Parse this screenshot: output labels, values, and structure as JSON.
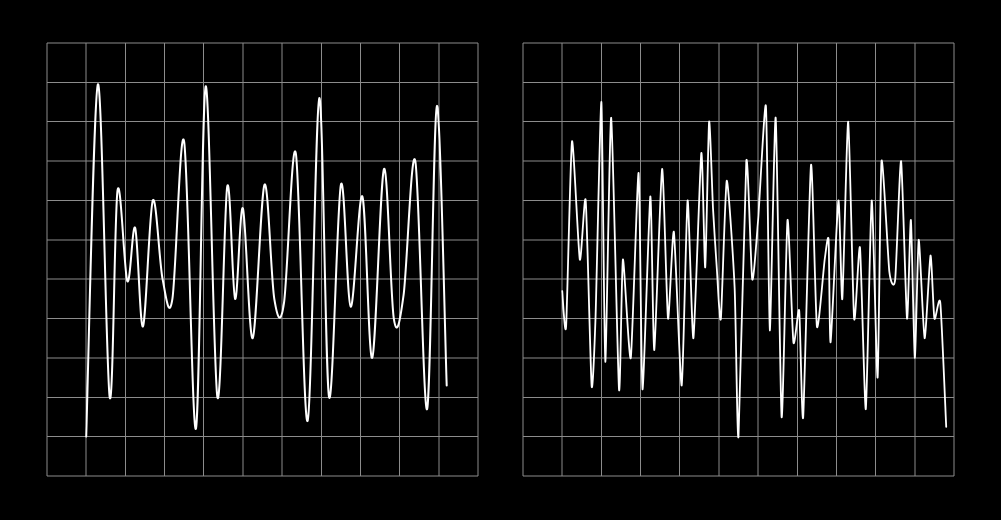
{
  "colors": {
    "background": "#000000",
    "grid": "#8c8c8c",
    "trace": "#ffffff"
  },
  "chart_data": [
    {
      "type": "line",
      "title": "",
      "xlabel": "",
      "ylabel": "",
      "xlim": [
        0,
        11
      ],
      "ylim": [
        0,
        11
      ],
      "grid": true,
      "grid_divisions": {
        "x": 11,
        "y": 11
      },
      "series": [
        {
          "points": [
            [
              1.0,
              1.0
            ],
            [
              1.3,
              9.95
            ],
            [
              1.6,
              2.0
            ],
            [
              1.8,
              7.25
            ],
            [
              2.05,
              4.95
            ],
            [
              2.25,
              6.3
            ],
            [
              2.45,
              3.8
            ],
            [
              2.7,
              7.0
            ],
            [
              2.95,
              5.0
            ],
            [
              3.2,
              4.5
            ],
            [
              3.5,
              8.5
            ],
            [
              3.8,
              1.2
            ],
            [
              4.05,
              9.9
            ],
            [
              4.35,
              2.0
            ],
            [
              4.6,
              7.35
            ],
            [
              4.8,
              4.5
            ],
            [
              5.0,
              6.8
            ],
            [
              5.25,
              3.5
            ],
            [
              5.55,
              7.4
            ],
            [
              5.8,
              4.5
            ],
            [
              6.05,
              4.4
            ],
            [
              6.35,
              8.2
            ],
            [
              6.65,
              1.4
            ],
            [
              6.95,
              9.6
            ],
            [
              7.2,
              2.0
            ],
            [
              7.5,
              7.4
            ],
            [
              7.75,
              4.3
            ],
            [
              8.05,
              7.1
            ],
            [
              8.3,
              3.0
            ],
            [
              8.6,
              7.8
            ],
            [
              8.85,
              4.0
            ],
            [
              9.1,
              4.6
            ],
            [
              9.4,
              8.0
            ],
            [
              9.7,
              1.7
            ],
            [
              9.95,
              9.4
            ],
            [
              10.2,
              2.3
            ]
          ]
        }
      ]
    },
    {
      "type": "line",
      "title": "",
      "xlabel": "",
      "ylabel": "",
      "xlim": [
        0,
        11
      ],
      "ylim": [
        0,
        11
      ],
      "grid": true,
      "grid_divisions": {
        "x": 11,
        "y": 11
      },
      "series": [
        {
          "points": [
            [
              1.0,
              4.7
            ],
            [
              1.1,
              3.8
            ],
            [
              1.25,
              8.5
            ],
            [
              1.45,
              5.5
            ],
            [
              1.6,
              7.0
            ],
            [
              1.75,
              2.3
            ],
            [
              1.85,
              4.0
            ],
            [
              2.0,
              9.5
            ],
            [
              2.1,
              2.9
            ],
            [
              2.25,
              9.1
            ],
            [
              2.45,
              2.2
            ],
            [
              2.55,
              5.5
            ],
            [
              2.75,
              3.0
            ],
            [
              2.95,
              7.7
            ],
            [
              3.05,
              2.2
            ],
            [
              3.25,
              7.1
            ],
            [
              3.35,
              3.2
            ],
            [
              3.55,
              7.8
            ],
            [
              3.7,
              4.0
            ],
            [
              3.85,
              6.2
            ],
            [
              4.05,
              2.3
            ],
            [
              4.2,
              7.0
            ],
            [
              4.35,
              3.5
            ],
            [
              4.55,
              8.2
            ],
            [
              4.65,
              5.3
            ],
            [
              4.75,
              9.0
            ],
            [
              4.85,
              6.8
            ],
            [
              4.95,
              5.2
            ],
            [
              5.05,
              4.0
            ],
            [
              5.2,
              7.5
            ],
            [
              5.4,
              4.8
            ],
            [
              5.5,
              1.0
            ],
            [
              5.7,
              8.0
            ],
            [
              5.85,
              5.0
            ],
            [
              6.0,
              6.5
            ],
            [
              6.2,
              9.4
            ],
            [
              6.3,
              3.7
            ],
            [
              6.45,
              9.1
            ],
            [
              6.6,
              1.5
            ],
            [
              6.75,
              6.5
            ],
            [
              6.9,
              3.4
            ],
            [
              7.05,
              4.2
            ],
            [
              7.15,
              1.5
            ],
            [
              7.35,
              7.9
            ],
            [
              7.5,
              3.8
            ],
            [
              7.7,
              5.5
            ],
            [
              7.8,
              6.0
            ],
            [
              7.85,
              3.4
            ],
            [
              8.05,
              7.0
            ],
            [
              8.15,
              4.5
            ],
            [
              8.3,
              9.0
            ],
            [
              8.45,
              4.0
            ],
            [
              8.6,
              5.8
            ],
            [
              8.75,
              1.7
            ],
            [
              8.9,
              7.0
            ],
            [
              9.05,
              2.5
            ],
            [
              9.15,
              8.0
            ],
            [
              9.35,
              5.2
            ],
            [
              9.5,
              5.0
            ],
            [
              9.65,
              8.0
            ],
            [
              9.8,
              4.0
            ],
            [
              9.9,
              6.5
            ],
            [
              10.0,
              3.0
            ],
            [
              10.1,
              6.0
            ],
            [
              10.25,
              3.5
            ],
            [
              10.4,
              5.6
            ],
            [
              10.5,
              4.0
            ],
            [
              10.65,
              4.4
            ],
            [
              10.8,
              1.25
            ]
          ]
        }
      ]
    }
  ]
}
